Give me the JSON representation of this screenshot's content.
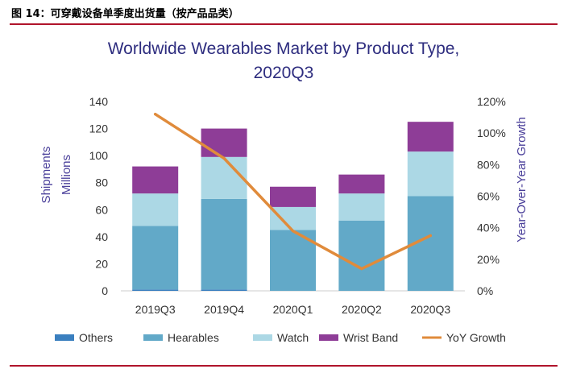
{
  "figure": {
    "caption": "图 14：可穿戴设备单季度出货量（按产品品类）"
  },
  "colors": {
    "rule": "#b0142b",
    "title": "#2e2d7f",
    "axis_text": "#333333",
    "axis_title": "#4a3f9a",
    "Others": "#3a7fbf",
    "Hearables": "#62a9c8",
    "Watch": "#acd8e5",
    "Wrist Band": "#8e3d97",
    "YoY Growth": "#e08b3b"
  },
  "chart_data": {
    "type": "bar",
    "stacked": true,
    "title_lines": [
      "Worldwide Wearables Market by Product Type,",
      "2020Q3"
    ],
    "categories": [
      "2019Q3",
      "2019Q4",
      "2020Q1",
      "2020Q2",
      "2020Q3"
    ],
    "ylabel_lines": [
      "Shipments",
      "Millions"
    ],
    "ylim": [
      0,
      140
    ],
    "yticks": [
      0,
      20,
      40,
      60,
      80,
      100,
      120,
      140
    ],
    "y2label": "Year-Over-Year Growth",
    "y2lim": [
      0,
      120
    ],
    "y2ticks": [
      "0%",
      "20%",
      "40%",
      "60%",
      "80%",
      "100%",
      "120%"
    ],
    "y2tick_values": [
      0,
      20,
      40,
      60,
      80,
      100,
      120
    ],
    "grid": false,
    "legend_position": "bottom",
    "series": [
      {
        "name": "Others",
        "values": [
          1,
          1,
          0,
          0,
          0
        ]
      },
      {
        "name": "Hearables",
        "values": [
          47,
          67,
          45,
          52,
          70
        ]
      },
      {
        "name": "Watch",
        "values": [
          24,
          31,
          17,
          20,
          33
        ]
      },
      {
        "name": "Wrist Band",
        "values": [
          20,
          21,
          15,
          14,
          22
        ]
      }
    ],
    "line_series": {
      "name": "YoY Growth",
      "axis": "secondary",
      "values": [
        112,
        84,
        38,
        14,
        35
      ]
    }
  }
}
